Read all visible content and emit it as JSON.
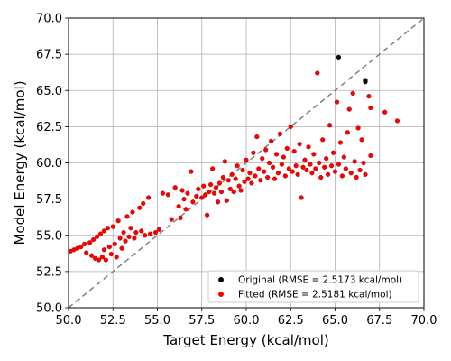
{
  "chart_data": {
    "type": "scatter",
    "xlabel": "Target Energy (kcal/mol)",
    "ylabel": "Model Energy (kcal/mol)",
    "xlim": [
      50.0,
      70.0
    ],
    "ylim": [
      50.0,
      70.0
    ],
    "xticks": [
      "50.0",
      "52.5",
      "55.0",
      "57.5",
      "60.0",
      "62.5",
      "65.0",
      "67.5",
      "70.0"
    ],
    "yticks": [
      "50.0",
      "52.5",
      "55.0",
      "57.5",
      "60.0",
      "62.5",
      "65.0",
      "67.5",
      "70.0"
    ],
    "grid": true,
    "legend_position": "lower-right",
    "reference_line": {
      "style": "dashed",
      "color": "#808080",
      "from": [
        50.0,
        50.0
      ],
      "to": [
        70.0,
        70.0
      ]
    },
    "series": [
      {
        "name": "Original (RMSE = 2.5173 kcal/mol)",
        "color": "#000000",
        "points": [
          [
            65.2,
            67.3
          ],
          [
            66.7,
            65.7
          ],
          [
            66.7,
            65.6
          ]
        ]
      },
      {
        "name": "Fitted (RMSE = 2.5181 kcal/mol)",
        "color": "#ff0000",
        "points": [
          [
            50.1,
            53.9
          ],
          [
            50.3,
            54.0
          ],
          [
            50.5,
            54.1
          ],
          [
            50.7,
            54.2
          ],
          [
            50.9,
            54.4
          ],
          [
            51.0,
            53.8
          ],
          [
            51.2,
            54.5
          ],
          [
            51.3,
            53.6
          ],
          [
            51.4,
            54.7
          ],
          [
            51.5,
            53.4
          ],
          [
            51.6,
            54.9
          ],
          [
            51.7,
            53.3
          ],
          [
            51.8,
            55.1
          ],
          [
            51.9,
            53.5
          ],
          [
            52.0,
            55.3
          ],
          [
            52.0,
            54.0
          ],
          [
            52.1,
            53.3
          ],
          [
            52.2,
            55.5
          ],
          [
            52.3,
            54.2
          ],
          [
            52.4,
            53.7
          ],
          [
            52.5,
            55.6
          ],
          [
            52.6,
            54.4
          ],
          [
            52.7,
            53.5
          ],
          [
            52.8,
            56.0
          ],
          [
            52.9,
            54.8
          ],
          [
            53.0,
            54.1
          ],
          [
            53.1,
            55.2
          ],
          [
            53.2,
            54.6
          ],
          [
            53.3,
            56.3
          ],
          [
            53.4,
            54.9
          ],
          [
            53.5,
            55.5
          ],
          [
            53.6,
            56.6
          ],
          [
            53.7,
            54.8
          ],
          [
            53.8,
            55.2
          ],
          [
            54.0,
            56.9
          ],
          [
            54.1,
            55.3
          ],
          [
            54.2,
            57.2
          ],
          [
            54.3,
            55.0
          ],
          [
            54.5,
            57.6
          ],
          [
            54.6,
            55.1
          ],
          [
            54.9,
            55.2
          ],
          [
            55.1,
            55.4
          ],
          [
            55.3,
            57.9
          ],
          [
            55.6,
            57.8
          ],
          [
            55.8,
            56.1
          ],
          [
            56.0,
            58.3
          ],
          [
            56.2,
            57.0
          ],
          [
            56.3,
            56.2
          ],
          [
            56.4,
            58.1
          ],
          [
            56.5,
            57.5
          ],
          [
            56.6,
            56.8
          ],
          [
            56.7,
            57.9
          ],
          [
            56.9,
            59.4
          ],
          [
            57.0,
            57.3
          ],
          [
            57.2,
            57.7
          ],
          [
            57.3,
            58.2
          ],
          [
            57.5,
            57.6
          ],
          [
            57.6,
            58.4
          ],
          [
            57.7,
            57.8
          ],
          [
            57.8,
            56.4
          ],
          [
            57.9,
            58.0
          ],
          [
            58.0,
            58.5
          ],
          [
            58.1,
            59.6
          ],
          [
            58.2,
            57.9
          ],
          [
            58.3,
            58.3
          ],
          [
            58.4,
            57.3
          ],
          [
            58.5,
            58.6
          ],
          [
            58.6,
            58.0
          ],
          [
            58.7,
            59.0
          ],
          [
            58.8,
            60.1
          ],
          [
            58.9,
            57.4
          ],
          [
            59.0,
            58.8
          ],
          [
            59.1,
            58.2
          ],
          [
            59.2,
            59.2
          ],
          [
            59.3,
            58.0
          ],
          [
            59.4,
            58.9
          ],
          [
            59.5,
            59.8
          ],
          [
            59.6,
            58.4
          ],
          [
            59.7,
            58.1
          ],
          [
            59.8,
            59.5
          ],
          [
            59.9,
            58.7
          ],
          [
            60.0,
            60.2
          ],
          [
            60.1,
            58.9
          ],
          [
            60.2,
            59.3
          ],
          [
            60.3,
            58.6
          ],
          [
            60.4,
            60.7
          ],
          [
            60.5,
            59.1
          ],
          [
            60.6,
            61.8
          ],
          [
            60.7,
            59.6
          ],
          [
            60.8,
            58.8
          ],
          [
            60.9,
            60.3
          ],
          [
            61.0,
            59.4
          ],
          [
            61.1,
            60.9
          ],
          [
            61.2,
            59.0
          ],
          [
            61.3,
            60.0
          ],
          [
            61.4,
            61.5
          ],
          [
            61.5,
            59.7
          ],
          [
            61.6,
            58.9
          ],
          [
            61.7,
            60.6
          ],
          [
            61.8,
            59.3
          ],
          [
            61.9,
            62.0
          ],
          [
            62.0,
            59.9
          ],
          [
            62.1,
            60.4
          ],
          [
            62.2,
            59.1
          ],
          [
            62.3,
            61.0
          ],
          [
            62.4,
            59.6
          ],
          [
            62.5,
            62.5
          ],
          [
            62.6,
            59.4
          ],
          [
            62.7,
            60.8
          ],
          [
            62.8,
            59.8
          ],
          [
            62.9,
            59.2
          ],
          [
            63.0,
            61.3
          ],
          [
            63.1,
            57.6
          ],
          [
            63.2,
            59.7
          ],
          [
            63.3,
            60.2
          ],
          [
            63.4,
            59.5
          ],
          [
            63.5,
            61.1
          ],
          [
            63.6,
            59.9
          ],
          [
            63.7,
            59.3
          ],
          [
            63.8,
            60.6
          ],
          [
            63.9,
            59.6
          ],
          [
            64.0,
            66.2
          ],
          [
            64.1,
            60.0
          ],
          [
            64.2,
            59.0
          ],
          [
            64.3,
            61.6
          ],
          [
            64.4,
            59.7
          ],
          [
            64.5,
            60.3
          ],
          [
            64.6,
            59.2
          ],
          [
            64.7,
            62.6
          ],
          [
            64.8,
            59.8
          ],
          [
            64.9,
            60.7
          ],
          [
            65.0,
            59.4
          ],
          [
            65.1,
            64.2
          ],
          [
            65.2,
            59.9
          ],
          [
            65.3,
            61.4
          ],
          [
            65.4,
            59.1
          ],
          [
            65.5,
            60.4
          ],
          [
            65.6,
            59.6
          ],
          [
            65.7,
            62.1
          ],
          [
            65.8,
            63.7
          ],
          [
            65.9,
            59.3
          ],
          [
            66.0,
            64.8
          ],
          [
            66.1,
            60.1
          ],
          [
            66.2,
            59.0
          ],
          [
            66.3,
            62.4
          ],
          [
            66.4,
            59.5
          ],
          [
            66.5,
            61.6
          ],
          [
            66.6,
            60.0
          ],
          [
            66.7,
            59.2
          ],
          [
            66.9,
            64.6
          ],
          [
            67.0,
            60.5
          ],
          [
            67.0,
            63.8
          ],
          [
            67.8,
            63.5
          ],
          [
            68.5,
            62.9
          ]
        ]
      }
    ]
  }
}
